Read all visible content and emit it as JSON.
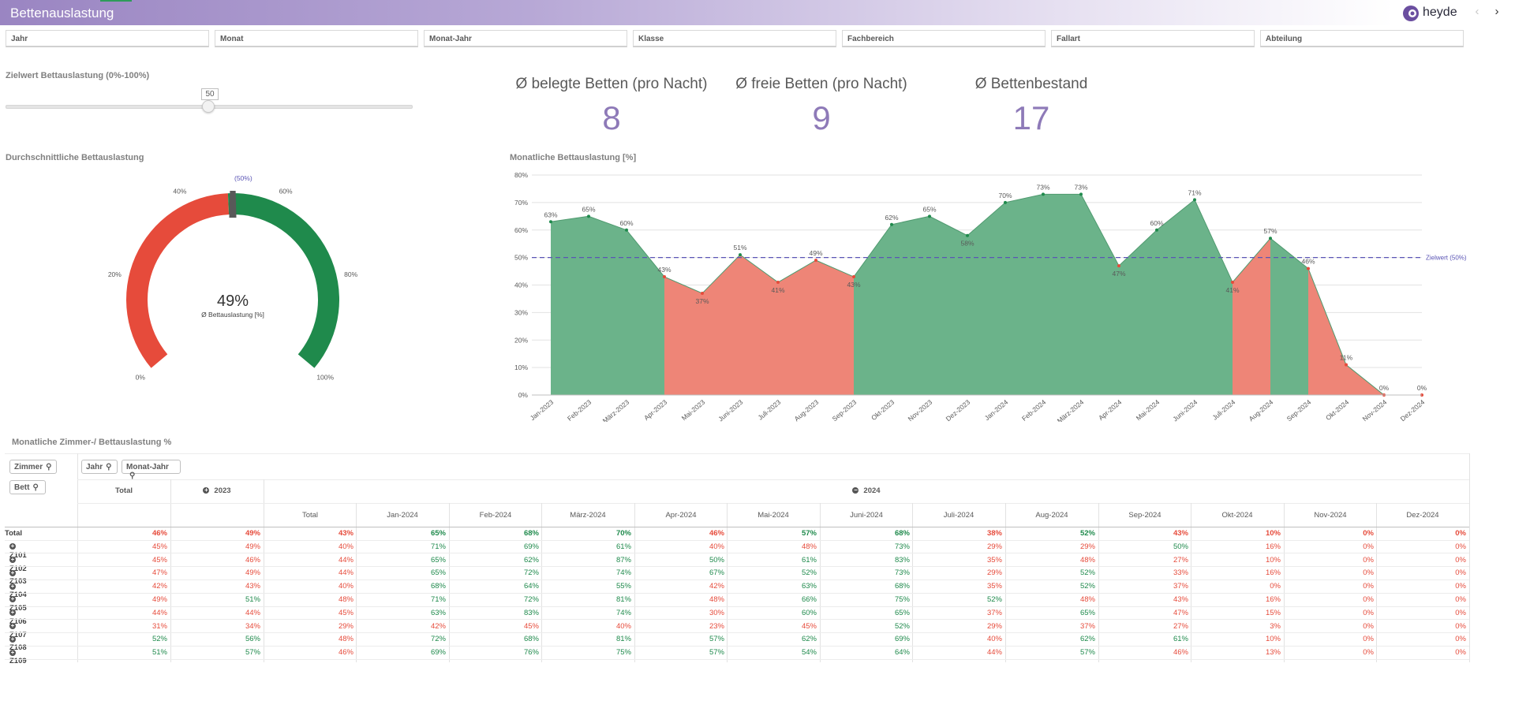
{
  "header": {
    "title": "Bettenauslastung",
    "logo_text": "heyde",
    "prev_icon": "‹",
    "next_icon": "›"
  },
  "filters": [
    "Jahr",
    "Monat",
    "Monat-Jahr",
    "Klasse",
    "Fachbereich",
    "Fallart",
    "Abteilung"
  ],
  "slider": {
    "label": "Zielwert Bettauslastung (0%-100%)",
    "value": "50",
    "level_percent": 50
  },
  "kpis": [
    {
      "title": "Ø belegte Betten (pro Nacht)",
      "value": "8"
    },
    {
      "title": "Ø freie Betten (pro Nacht)",
      "value": "9"
    },
    {
      "title": "Ø Bettenbestand",
      "value": "17"
    }
  ],
  "gauge": {
    "section_title": "Durchschnittliche Bettauslastung",
    "value_text": "49%",
    "value": 49,
    "target": 50,
    "sublabel": "Ø Bettauslastung [%]",
    "target_label_1": "Zielwert",
    "target_label_2": "(50%)",
    "ticks": [
      "0%",
      "20%",
      "40%",
      "60%",
      "80%",
      "100%"
    ],
    "colors": {
      "below": "#e64b3b",
      "above": "#1f8a4c",
      "needle": "#595959"
    }
  },
  "chart_data": {
    "type": "area",
    "title": "Monatliche Bettauslastung [%]",
    "categories": [
      "Jan-2023",
      "Feb-2023",
      "März-2023",
      "Apr-2023",
      "Mai-2023",
      "Juni-2023",
      "Juli-2023",
      "Aug-2023",
      "Sep-2023",
      "Okt-2023",
      "Nov-2023",
      "Dez-2023",
      "Jan-2024",
      "Feb-2024",
      "März-2024",
      "Apr-2024",
      "Mai-2024",
      "Juni-2024",
      "Juli-2024",
      "Aug-2024",
      "Sep-2024",
      "Okt-2024",
      "Nov-2024",
      "Dez-2024"
    ],
    "values": [
      63,
      65,
      60,
      43,
      37,
      51,
      41,
      49,
      43,
      62,
      65,
      58,
      70,
      73,
      73,
      47,
      60,
      71,
      41,
      57,
      46,
      11,
      0,
      0
    ],
    "value_labels": [
      "63%",
      "65%",
      "60%",
      "43%",
      "37%",
      "51%",
      "41%",
      "49%",
      "43%",
      "62%",
      "65%",
      "58%",
      "70%",
      "73%",
      "73%",
      "47%",
      "60%",
      "71%",
      "41%",
      "57%",
      "46%",
      "11%",
      "0%",
      "0%"
    ],
    "y_ticks": [
      "0%",
      "10%",
      "20%",
      "30%",
      "40%",
      "50%",
      "60%",
      "70%",
      "80%"
    ],
    "ylim": [
      0,
      80
    ],
    "reference_line": {
      "value": 50,
      "label": "Zielwert (50%)",
      "color": "#5b55b5"
    },
    "colors": {
      "above": "#6bb38a",
      "below": "#ee8577",
      "point_above": "#1f8a4c",
      "point_below": "#e64b3b"
    },
    "grid": true
  },
  "table": {
    "title": "Monatliche Zimmer-/ Bettauslastung %",
    "row_dims": [
      "Zimmer",
      "Bett"
    ],
    "col_dims": [
      "Jahr",
      "Monat-Jahr"
    ],
    "total_header": "Total",
    "year_2023": "2023",
    "year_2024": "2024",
    "month_headers": [
      "Total",
      "Jan-2024",
      "Feb-2024",
      "März-2024",
      "Apr-2024",
      "Mai-2024",
      "Juni-2024",
      "Juli-2024",
      "Aug-2024",
      "Sep-2024",
      "Okt-2024",
      "Nov-2024",
      "Dez-2024"
    ],
    "rows": [
      {
        "label": "Total",
        "cells": [
          "46%",
          "49%",
          "43%",
          "65%",
          "68%",
          "70%",
          "46%",
          "57%",
          "68%",
          "38%",
          "52%",
          "43%",
          "10%",
          "0%",
          "0%"
        ]
      },
      {
        "label": "Z101",
        "cells": [
          "45%",
          "49%",
          "40%",
          "71%",
          "69%",
          "61%",
          "40%",
          "48%",
          "73%",
          "29%",
          "29%",
          "50%",
          "16%",
          "0%",
          "0%"
        ]
      },
      {
        "label": "Z102",
        "cells": [
          "45%",
          "46%",
          "44%",
          "65%",
          "62%",
          "87%",
          "50%",
          "61%",
          "83%",
          "35%",
          "48%",
          "27%",
          "10%",
          "0%",
          "0%"
        ]
      },
      {
        "label": "Z103",
        "cells": [
          "47%",
          "49%",
          "44%",
          "65%",
          "72%",
          "74%",
          "67%",
          "52%",
          "73%",
          "29%",
          "52%",
          "33%",
          "16%",
          "0%",
          "0%"
        ]
      },
      {
        "label": "Z104",
        "cells": [
          "42%",
          "43%",
          "40%",
          "68%",
          "64%",
          "55%",
          "42%",
          "63%",
          "68%",
          "35%",
          "52%",
          "37%",
          "0%",
          "0%",
          "0%"
        ]
      },
      {
        "label": "Z105",
        "cells": [
          "49%",
          "51%",
          "48%",
          "71%",
          "72%",
          "81%",
          "48%",
          "66%",
          "75%",
          "52%",
          "48%",
          "43%",
          "16%",
          "0%",
          "0%"
        ]
      },
      {
        "label": "Z106",
        "cells": [
          "44%",
          "44%",
          "45%",
          "63%",
          "83%",
          "74%",
          "30%",
          "60%",
          "65%",
          "37%",
          "65%",
          "47%",
          "15%",
          "0%",
          "0%"
        ]
      },
      {
        "label": "Z107",
        "cells": [
          "31%",
          "34%",
          "29%",
          "42%",
          "45%",
          "40%",
          "23%",
          "45%",
          "52%",
          "29%",
          "37%",
          "27%",
          "3%",
          "0%",
          "0%"
        ]
      },
      {
        "label": "Z108",
        "cells": [
          "52%",
          "56%",
          "48%",
          "72%",
          "68%",
          "81%",
          "57%",
          "62%",
          "69%",
          "40%",
          "62%",
          "61%",
          "10%",
          "0%",
          "0%"
        ]
      },
      {
        "label": "Z109",
        "cells": [
          "51%",
          "57%",
          "46%",
          "69%",
          "76%",
          "75%",
          "57%",
          "54%",
          "64%",
          "44%",
          "57%",
          "46%",
          "13%",
          "0%",
          "0%"
        ]
      }
    ],
    "colors": {
      "good": "#1f8a4c",
      "bad": "#e64b3b"
    }
  }
}
